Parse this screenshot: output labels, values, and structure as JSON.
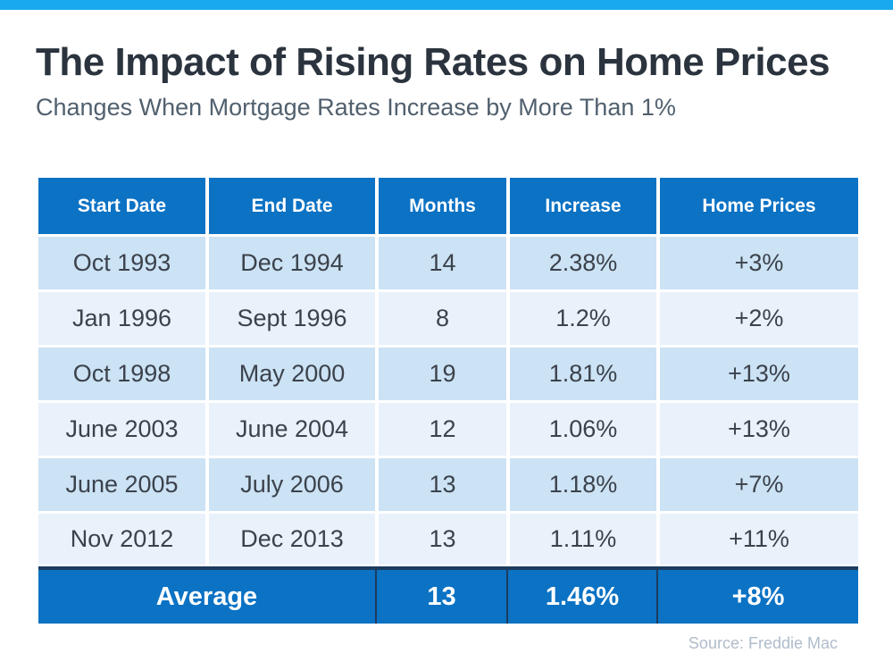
{
  "page": {
    "title": "The Impact of Rising Rates on Home Prices",
    "subtitle": "Changes When Mortgage Rates Increase by More Than 1%",
    "source": "Source: Freddie Mac"
  },
  "table": {
    "columns": [
      "Start Date",
      "End Date",
      "Months",
      "Increase",
      "Home Prices"
    ],
    "rows": [
      [
        "Oct 1993",
        "Dec 1994",
        "14",
        "2.38%",
        "+3%"
      ],
      [
        "Jan 1996",
        "Sept 1996",
        "8",
        "1.2%",
        "+2%"
      ],
      [
        "Oct 1998",
        "May 2000",
        "19",
        "1.81%",
        "+13%"
      ],
      [
        "June 2003",
        "June 2004",
        "12",
        "1.06%",
        "+13%"
      ],
      [
        "June 2005",
        "July 2006",
        "13",
        "1.18%",
        "+7%"
      ],
      [
        "Nov 2012",
        "Dec 2013",
        "13",
        "1.11%",
        "+11%"
      ]
    ],
    "average_row": {
      "label": "Average",
      "months": "13",
      "increase": "1.46%",
      "home_prices": "+8%"
    }
  },
  "colors": {
    "top_bar": "#18A9EE",
    "header_bg": "#0B72C4",
    "row_alt_dark": "#CCE2F5",
    "row_alt_light": "#E9F1FB",
    "average_bg": "#0B72C4",
    "average_border": "#1C3B5E",
    "title_text": "#2B343E",
    "subtitle_text": "#51606E",
    "data_text": "#3B424B",
    "source_text": "#B0BCCB"
  },
  "chart_data": {
    "type": "table",
    "title": "The Impact of Rising Rates on Home Prices",
    "subtitle": "Changes When Mortgage Rates Increase by More Than 1%",
    "columns": [
      "Start Date",
      "End Date",
      "Months",
      "Increase",
      "Home Prices"
    ],
    "rows": [
      {
        "start_date": "Oct 1993",
        "end_date": "Dec 1994",
        "months": 14,
        "increase_pct": 2.38,
        "home_prices_pct": 3
      },
      {
        "start_date": "Jan 1996",
        "end_date": "Sept 1996",
        "months": 8,
        "increase_pct": 1.2,
        "home_prices_pct": 2
      },
      {
        "start_date": "Oct 1998",
        "end_date": "May 2000",
        "months": 19,
        "increase_pct": 1.81,
        "home_prices_pct": 13
      },
      {
        "start_date": "June 2003",
        "end_date": "June 2004",
        "months": 12,
        "increase_pct": 1.06,
        "home_prices_pct": 13
      },
      {
        "start_date": "June 2005",
        "end_date": "July 2006",
        "months": 13,
        "increase_pct": 1.18,
        "home_prices_pct": 7
      },
      {
        "start_date": "Nov 2012",
        "end_date": "Dec 2013",
        "months": 13,
        "increase_pct": 1.11,
        "home_prices_pct": 11
      }
    ],
    "average": {
      "months": 13,
      "increase_pct": 1.46,
      "home_prices_pct": 8
    },
    "source": "Source: Freddie Mac"
  }
}
